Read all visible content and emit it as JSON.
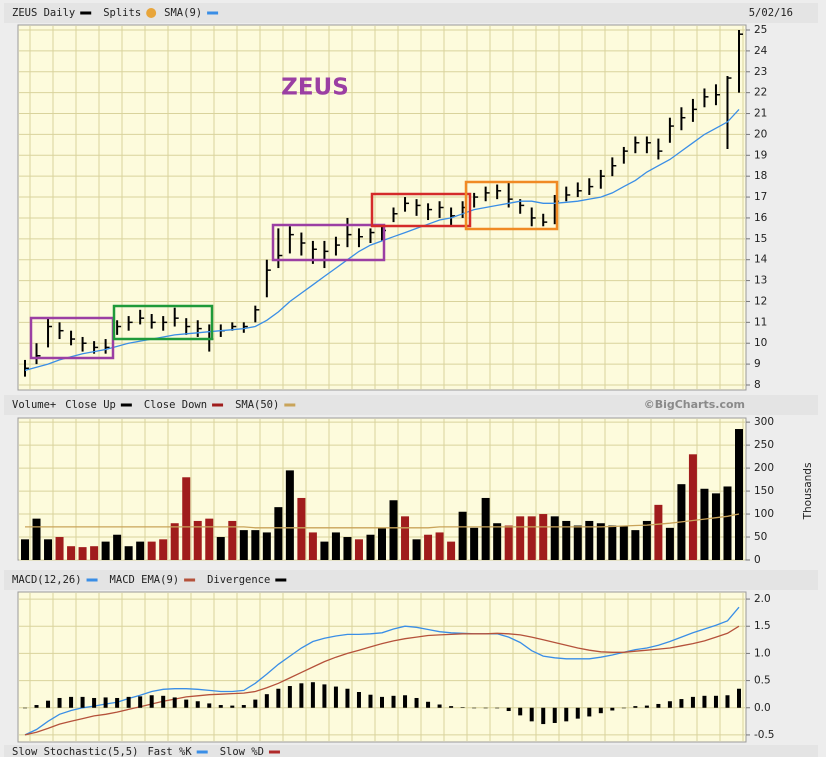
{
  "chart_data": [
    {
      "type": "ohlc",
      "date": "5/02/16",
      "annotation": "ZEUS",
      "splits_label": "Splits",
      "ylim": [
        7.76,
        25.24
      ],
      "yticks": [
        8,
        9,
        10,
        11,
        12,
        13,
        14,
        15,
        16,
        17,
        18,
        19,
        20,
        21,
        22,
        23,
        24,
        25
      ],
      "grid": true,
      "series": [
        {
          "name": "ZEUS Daily",
          "color": "#000000",
          "style": "ohlc",
          "high": [
            9.2,
            10.0,
            11.2,
            11.0,
            10.6,
            10.3,
            10.1,
            10.2,
            11.1,
            11.3,
            11.6,
            11.4,
            11.3,
            11.7,
            11.2,
            11.1,
            10.9,
            10.9,
            11.0,
            11.0,
            11.8,
            14.0,
            15.5,
            15.6,
            15.3,
            14.9,
            14.9,
            15.1,
            16.0,
            15.5,
            15.5,
            15.7,
            16.5,
            17.0,
            16.9,
            16.7,
            16.8,
            16.5,
            16.8,
            17.2,
            17.5,
            17.6,
            17.7,
            16.9,
            16.5,
            16.2,
            17.1,
            17.5,
            17.7,
            17.9,
            18.3,
            18.9,
            19.4,
            19.9,
            19.9,
            19.8,
            20.8,
            21.3,
            21.7,
            22.2,
            22.4,
            22.8,
            25.0
          ],
          "low": [
            8.4,
            9.0,
            9.8,
            10.2,
            9.9,
            9.6,
            9.5,
            9.5,
            10.4,
            10.6,
            10.9,
            10.7,
            10.6,
            10.8,
            10.4,
            10.3,
            9.6,
            10.3,
            10.6,
            10.5,
            11.0,
            12.2,
            13.6,
            14.3,
            14.2,
            13.8,
            13.6,
            14.2,
            14.6,
            14.6,
            14.8,
            14.9,
            15.8,
            16.3,
            16.1,
            15.9,
            16.0,
            15.6,
            16.0,
            16.5,
            16.8,
            16.9,
            16.5,
            16.2,
            15.6,
            15.6,
            15.7,
            16.8,
            17.0,
            17.1,
            17.4,
            18.0,
            18.6,
            19.1,
            19.1,
            18.8,
            19.6,
            20.2,
            20.6,
            21.3,
            21.4,
            19.3,
            22.0
          ],
          "close": [
            8.8,
            9.4,
            10.8,
            10.6,
            10.2,
            10.0,
            9.8,
            9.8,
            10.8,
            11.0,
            11.2,
            11.0,
            11.0,
            11.2,
            10.8,
            10.7,
            10.2,
            10.6,
            10.8,
            10.8,
            11.6,
            13.5,
            14.2,
            15.2,
            14.8,
            14.5,
            14.4,
            14.7,
            15.2,
            15.1,
            15.3,
            15.4,
            16.2,
            16.7,
            16.6,
            16.4,
            16.5,
            16.1,
            16.5,
            17.0,
            17.2,
            17.3,
            16.9,
            16.6,
            16.0,
            15.8,
            16.8,
            17.1,
            17.3,
            17.5,
            18.0,
            18.5,
            19.2,
            19.6,
            19.6,
            19.2,
            20.4,
            20.8,
            21.2,
            21.8,
            21.9,
            22.7,
            24.8
          ]
        },
        {
          "name": "SMA(9)",
          "color": "#3a8ee6",
          "style": "line",
          "values": [
            8.7,
            8.85,
            9.0,
            9.2,
            9.35,
            9.5,
            9.6,
            9.7,
            9.85,
            10.0,
            10.1,
            10.2,
            10.3,
            10.4,
            10.45,
            10.5,
            10.55,
            10.6,
            10.65,
            10.7,
            10.8,
            11.1,
            11.5,
            12.0,
            12.4,
            12.8,
            13.2,
            13.6,
            14.0,
            14.4,
            14.7,
            14.9,
            15.1,
            15.3,
            15.5,
            15.7,
            15.9,
            16.0,
            16.2,
            16.4,
            16.5,
            16.6,
            16.7,
            16.8,
            16.8,
            16.7,
            16.7,
            16.75,
            16.8,
            16.9,
            17.0,
            17.2,
            17.5,
            17.8,
            18.2,
            18.5,
            18.8,
            19.2,
            19.6,
            20.0,
            20.3,
            20.6,
            21.2
          ]
        }
      ]
    },
    {
      "type": "bar",
      "title": "Volume+",
      "credit": "©BigCharts.com",
      "y_label": "Thousands",
      "ylim": [
        0,
        309
      ],
      "yticks": [
        0,
        50,
        100,
        150,
        200,
        250,
        300
      ],
      "grid": true,
      "series": [
        {
          "name": "Close Up",
          "color": "#000000",
          "style": "bar",
          "values": [
            45,
            90,
            45,
            null,
            null,
            null,
            null,
            40,
            55,
            30,
            40,
            null,
            null,
            null,
            null,
            null,
            null,
            50,
            null,
            65,
            65,
            60,
            115,
            195,
            null,
            null,
            40,
            60,
            50,
            null,
            55,
            70,
            130,
            null,
            45,
            null,
            null,
            null,
            105,
            70,
            135,
            80,
            null,
            null,
            null,
            null,
            95,
            85,
            75,
            85,
            80,
            75,
            75,
            65,
            85,
            null,
            70,
            165,
            null,
            155,
            145,
            160,
            285
          ]
        },
        {
          "name": "Close Down",
          "color": "#a01c1c",
          "style": "bar",
          "values": [
            null,
            null,
            null,
            50,
            30,
            28,
            30,
            null,
            null,
            null,
            null,
            40,
            45,
            80,
            180,
            85,
            90,
            null,
            85,
            null,
            null,
            null,
            null,
            null,
            135,
            60,
            null,
            null,
            null,
            45,
            null,
            null,
            null,
            95,
            null,
            55,
            60,
            40,
            null,
            null,
            null,
            null,
            75,
            95,
            95,
            100,
            null,
            null,
            null,
            null,
            null,
            null,
            null,
            null,
            null,
            120,
            null,
            null,
            230,
            null,
            null,
            null,
            null
          ]
        },
        {
          "name": "SMA(50)",
          "color": "#c9a45a",
          "style": "line",
          "values": [
            72,
            72,
            72,
            72,
            72,
            72,
            72,
            72,
            72,
            72,
            72,
            72,
            72,
            72,
            72,
            72,
            72,
            72,
            72,
            72,
            70,
            70,
            70,
            70,
            70,
            70,
            70,
            70,
            70,
            70,
            70,
            70,
            70,
            70,
            70,
            70,
            72,
            72,
            72,
            72,
            72,
            72,
            72,
            72,
            72,
            72,
            72,
            72,
            72,
            72,
            72,
            73,
            74,
            75,
            76,
            78,
            80,
            83,
            86,
            89,
            92,
            95,
            100
          ]
        }
      ]
    },
    {
      "type": "line",
      "ylim": [
        -0.63,
        2.13
      ],
      "yticks": [
        {
          "value": 2.0,
          "label": "2.0"
        },
        1.5,
        {
          "value": 1.0,
          "label": "1.0"
        },
        0.5,
        {
          "value": 0,
          "label": "0.0"
        },
        -0.5
      ],
      "grid": true,
      "series": [
        {
          "name": "MACD(12,26)",
          "color": "#3a8ee6",
          "style": "line",
          "values": [
            -0.5,
            -0.4,
            -0.25,
            -0.12,
            -0.05,
            0.0,
            0.03,
            0.07,
            0.1,
            0.17,
            0.23,
            0.3,
            0.34,
            0.35,
            0.35,
            0.34,
            0.32,
            0.3,
            0.3,
            0.32,
            0.45,
            0.62,
            0.8,
            0.95,
            1.1,
            1.22,
            1.28,
            1.32,
            1.35,
            1.35,
            1.36,
            1.38,
            1.45,
            1.5,
            1.48,
            1.44,
            1.4,
            1.38,
            1.37,
            1.36,
            1.36,
            1.36,
            1.3,
            1.2,
            1.05,
            0.95,
            0.92,
            0.9,
            0.9,
            0.9,
            0.93,
            0.97,
            1.02,
            1.07,
            1.1,
            1.15,
            1.22,
            1.3,
            1.38,
            1.45,
            1.52,
            1.6,
            1.85
          ]
        },
        {
          "name": "MACD EMA(9)",
          "color": "#b5523b",
          "style": "line",
          "values": [
            -0.5,
            -0.45,
            -0.38,
            -0.3,
            -0.25,
            -0.2,
            -0.15,
            -0.12,
            -0.08,
            -0.03,
            0.02,
            0.07,
            0.12,
            0.16,
            0.2,
            0.22,
            0.24,
            0.25,
            0.26,
            0.27,
            0.3,
            0.37,
            0.45,
            0.55,
            0.65,
            0.75,
            0.85,
            0.93,
            1.0,
            1.06,
            1.12,
            1.18,
            1.23,
            1.27,
            1.3,
            1.33,
            1.34,
            1.35,
            1.36,
            1.36,
            1.36,
            1.37,
            1.36,
            1.34,
            1.3,
            1.25,
            1.2,
            1.15,
            1.1,
            1.06,
            1.03,
            1.02,
            1.02,
            1.04,
            1.06,
            1.08,
            1.1,
            1.14,
            1.18,
            1.23,
            1.3,
            1.37,
            1.5
          ]
        },
        {
          "name": "Divergence",
          "color": "#000000",
          "style": "bar",
          "values": [
            0.0,
            0.05,
            0.13,
            0.18,
            0.2,
            0.2,
            0.18,
            0.19,
            0.18,
            0.2,
            0.21,
            0.23,
            0.22,
            0.19,
            0.15,
            0.12,
            0.08,
            0.05,
            0.04,
            0.05,
            0.15,
            0.25,
            0.35,
            0.4,
            0.45,
            0.47,
            0.43,
            0.39,
            0.35,
            0.29,
            0.24,
            0.2,
            0.22,
            0.23,
            0.18,
            0.11,
            0.06,
            0.03,
            0.01,
            0.0,
            0.0,
            -0.01,
            -0.06,
            -0.14,
            -0.25,
            -0.3,
            -0.28,
            -0.25,
            -0.2,
            -0.16,
            -0.1,
            -0.05,
            0.0,
            0.03,
            0.04,
            0.07,
            0.12,
            0.16,
            0.2,
            0.22,
            0.22,
            0.23,
            0.35
          ]
        }
      ]
    },
    {
      "type": "legend",
      "series": [
        {
          "name": "Slow Stochastic(5,5)"
        },
        {
          "name": "Fast %K",
          "color": "#3a8ee6"
        },
        {
          "name": "Slow %D",
          "color": "#b02a2a"
        }
      ]
    }
  ]
}
